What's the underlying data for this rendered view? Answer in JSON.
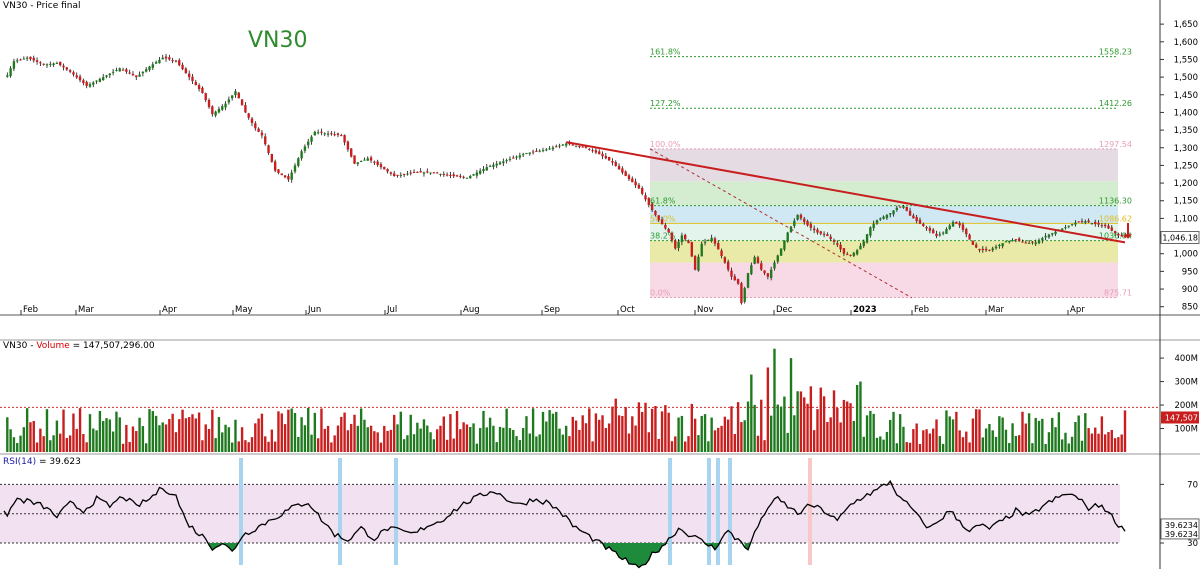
{
  "panels": {
    "price_title": "VN30 - Price final",
    "watermark": "VN30",
    "volume_title_prefix": "VN30 - ",
    "volume_title_name": "Volume",
    "volume_title_value": " = 147,507,296.00",
    "rsi_title_name": "RSI(14)",
    "rsi_title_value": " = 39.623"
  },
  "colors": {
    "up": "#1f7a1f",
    "down": "#c81e1e",
    "trendline": "#c81e1e",
    "rsi_band": "#f2e2f1",
    "rsi_low_fill": "#1e8a3c",
    "rsi_high_fill": "#c81e1e",
    "oversold_marker": "#a8d4f0",
    "overbought_marker": "#f8c8c8"
  },
  "chart_data": [
    {
      "type": "candlestick",
      "title": "VN30 - Price final",
      "x_labels": [
        "Feb",
        "Mar",
        "Apr",
        "May",
        "Jun",
        "Jul",
        "Aug",
        "Sep",
        "Oct",
        "Nov",
        "Dec",
        "2023",
        "Feb",
        "Mar",
        "Apr"
      ],
      "y_ticks": [
        1650,
        1600,
        1550,
        1500,
        1450,
        1400,
        1350,
        1300,
        1250,
        1200,
        1150,
        1100,
        1050,
        1000,
        950,
        900,
        850
      ],
      "ylim": [
        835,
        1690
      ],
      "last_price_label": "1,046.18",
      "keypoints": [
        [
          1,
          1505
        ],
        [
          3,
          1545
        ],
        [
          7,
          1555
        ],
        [
          12,
          1535
        ],
        [
          16,
          1540
        ],
        [
          20,
          1515
        ],
        [
          25,
          1475
        ],
        [
          30,
          1500
        ],
        [
          35,
          1525
        ],
        [
          40,
          1500
        ],
        [
          44,
          1530
        ],
        [
          48,
          1555
        ],
        [
          52,
          1545
        ],
        [
          56,
          1500
        ],
        [
          60,
          1455
        ],
        [
          63,
          1395
        ],
        [
          67,
          1425
        ],
        [
          70,
          1460
        ],
        [
          73,
          1400
        ],
        [
          76,
          1355
        ],
        [
          78,
          1335
        ],
        [
          82,
          1235
        ],
        [
          86,
          1210
        ],
        [
          90,
          1290
        ],
        [
          94,
          1345
        ],
        [
          98,
          1340
        ],
        [
          102,
          1335
        ],
        [
          106,
          1255
        ],
        [
          110,
          1270
        ],
        [
          114,
          1245
        ],
        [
          118,
          1220
        ],
        [
          124,
          1230
        ],
        [
          130,
          1230
        ],
        [
          134,
          1222
        ],
        [
          140,
          1215
        ],
        [
          146,
          1245
        ],
        [
          152,
          1265
        ],
        [
          158,
          1285
        ],
        [
          164,
          1295
        ],
        [
          170,
          1312
        ],
        [
          176,
          1300
        ],
        [
          180,
          1282
        ],
        [
          184,
          1258
        ],
        [
          188,
          1220
        ],
        [
          192,
          1185
        ],
        [
          195,
          1138
        ],
        [
          198,
          1095
        ],
        [
          201,
          1060
        ],
        [
          203,
          1015
        ],
        [
          205,
          1052
        ],
        [
          207,
          1030
        ],
        [
          209,
          955
        ],
        [
          211,
          1028
        ],
        [
          214,
          1045
        ],
        [
          216,
          1012
        ],
        [
          218,
          975
        ],
        [
          220,
          935
        ],
        [
          222,
          915
        ],
        [
          223,
          860
        ],
        [
          225,
          945
        ],
        [
          227,
          990
        ],
        [
          229,
          955
        ],
        [
          231,
          935
        ],
        [
          233,
          975
        ],
        [
          235,
          1015
        ],
        [
          237,
          1060
        ],
        [
          240,
          1110
        ],
        [
          243,
          1080
        ],
        [
          246,
          1060
        ],
        [
          249,
          1050
        ],
        [
          252,
          1025
        ],
        [
          254,
          1000
        ],
        [
          256,
          995
        ],
        [
          258,
          1010
        ],
        [
          260,
          1035
        ],
        [
          262,
          1075
        ],
        [
          264,
          1095
        ],
        [
          266,
          1105
        ],
        [
          268,
          1115
        ],
        [
          270,
          1130
        ],
        [
          272,
          1135
        ],
        [
          274,
          1108
        ],
        [
          277,
          1085
        ],
        [
          280,
          1065
        ],
        [
          282,
          1050
        ],
        [
          284,
          1060
        ],
        [
          287,
          1090
        ],
        [
          289,
          1080
        ],
        [
          291,
          1055
        ],
        [
          293,
          1025
        ],
        [
          295,
          1010
        ],
        [
          298,
          1010
        ],
        [
          300,
          1020
        ],
        [
          303,
          1035
        ],
        [
          306,
          1040
        ],
        [
          309,
          1030
        ],
        [
          312,
          1032
        ],
        [
          315,
          1050
        ],
        [
          318,
          1062
        ],
        [
          321,
          1075
        ],
        [
          324,
          1088
        ],
        [
          327,
          1092
        ],
        [
          330,
          1084
        ],
        [
          333,
          1078
        ],
        [
          335,
          1065
        ],
        [
          337,
          1052
        ],
        [
          339,
          1046
        ]
      ]
    },
    {
      "type": "bar",
      "title": "Volume",
      "y_ticks": [
        "400M",
        "300M",
        "200M",
        "100M"
      ],
      "y_values": [
        400,
        300,
        200,
        100
      ],
      "ylim": [
        0,
        460
      ],
      "reference_line": 190,
      "last_value_label": "147,507"
    },
    {
      "type": "line",
      "title": "RSI(14)",
      "y_ticks": [
        "70",
        "30"
      ],
      "ylim": [
        15,
        88
      ],
      "levels": [
        70,
        50,
        30
      ],
      "last_value_labels": [
        "39.6234",
        "39.6234"
      ],
      "keypoints": [
        [
          1,
          50
        ],
        [
          4,
          60
        ],
        [
          8,
          58
        ],
        [
          12,
          55
        ],
        [
          16,
          48
        ],
        [
          20,
          57
        ],
        [
          24,
          52
        ],
        [
          28,
          60
        ],
        [
          32,
          55
        ],
        [
          36,
          62
        ],
        [
          40,
          55
        ],
        [
          44,
          60
        ],
        [
          48,
          68
        ],
        [
          52,
          62
        ],
        [
          55,
          45
        ],
        [
          58,
          38
        ],
        [
          61,
          33
        ],
        [
          63,
          27
        ],
        [
          66,
          30
        ],
        [
          69,
          24
        ],
        [
          72,
          35
        ],
        [
          76,
          40
        ],
        [
          80,
          45
        ],
        [
          84,
          50
        ],
        [
          88,
          55
        ],
        [
          92,
          58
        ],
        [
          96,
          46
        ],
        [
          100,
          36
        ],
        [
          104,
          32
        ],
        [
          108,
          40
        ],
        [
          112,
          33
        ],
        [
          116,
          40
        ],
        [
          120,
          38
        ],
        [
          124,
          36
        ],
        [
          128,
          42
        ],
        [
          132,
          45
        ],
        [
          136,
          52
        ],
        [
          140,
          58
        ],
        [
          144,
          62
        ],
        [
          148,
          66
        ],
        [
          152,
          60
        ],
        [
          156,
          56
        ],
        [
          160,
          60
        ],
        [
          164,
          58
        ],
        [
          168,
          52
        ],
        [
          172,
          42
        ],
        [
          176,
          36
        ],
        [
          180,
          30
        ],
        [
          184,
          24
        ],
        [
          188,
          18
        ],
        [
          192,
          12
        ],
        [
          196,
          22
        ],
        [
          200,
          30
        ],
        [
          204,
          40
        ],
        [
          208,
          35
        ],
        [
          212,
          30
        ],
        [
          215,
          26
        ],
        [
          217,
          34
        ],
        [
          219,
          38
        ],
        [
          221,
          33
        ],
        [
          223,
          32
        ],
        [
          225,
          24
        ],
        [
          227,
          38
        ],
        [
          229,
          45
        ],
        [
          231,
          55
        ],
        [
          234,
          60
        ],
        [
          237,
          55
        ],
        [
          240,
          50
        ],
        [
          244,
          56
        ],
        [
          248,
          52
        ],
        [
          252,
          45
        ],
        [
          256,
          56
        ],
        [
          260,
          62
        ],
        [
          264,
          66
        ],
        [
          268,
          72
        ],
        [
          271,
          60
        ],
        [
          274,
          55
        ],
        [
          277,
          46
        ],
        [
          280,
          40
        ],
        [
          283,
          46
        ],
        [
          286,
          52
        ],
        [
          289,
          45
        ],
        [
          292,
          38
        ],
        [
          295,
          42
        ],
        [
          298,
          40
        ],
        [
          302,
          45
        ],
        [
          306,
          52
        ],
        [
          310,
          48
        ],
        [
          314,
          55
        ],
        [
          318,
          60
        ],
        [
          322,
          64
        ],
        [
          325,
          60
        ],
        [
          328,
          54
        ],
        [
          332,
          56
        ],
        [
          335,
          48
        ],
        [
          338,
          40
        ]
      ]
    }
  ],
  "fib_levels": [
    {
      "label_left": "161.8%",
      "label_right": "1558.23",
      "value": 1558,
      "range": "wide"
    },
    {
      "label_left": "127.2%",
      "label_right": "1412.26",
      "value": 1412,
      "range": "wide"
    },
    {
      "label_left": "100.0%",
      "label_right": "1297.54",
      "value": 1297,
      "range": "box"
    },
    {
      "label_left": "61.8%",
      "label_right": "1136.30",
      "value": 1136,
      "range": "box"
    },
    {
      "label_left": "50.0%",
      "label_right": "1086.62",
      "value": 1086,
      "range": "box"
    },
    {
      "label_left": "38.2%",
      "label_right": "1036.84",
      "value": 1037,
      "range": "box"
    },
    {
      "label_left": "0.0%",
      "label_right": "875.71",
      "value": 876,
      "range": "box"
    }
  ],
  "fib_zones": [
    {
      "top": 1297,
      "bottom": 1205,
      "color": "#e5dbe3"
    },
    {
      "top": 1205,
      "bottom": 1136,
      "color": "#d4ecd0"
    },
    {
      "top": 1136,
      "bottom": 1086,
      "color": "#cfe8f3"
    },
    {
      "top": 1086,
      "bottom": 1037,
      "color": "#e2f4ec"
    },
    {
      "top": 1037,
      "bottom": 975,
      "color": "#eaeaa8"
    },
    {
      "top": 975,
      "bottom": 876,
      "color": "#f8d9e6"
    }
  ]
}
